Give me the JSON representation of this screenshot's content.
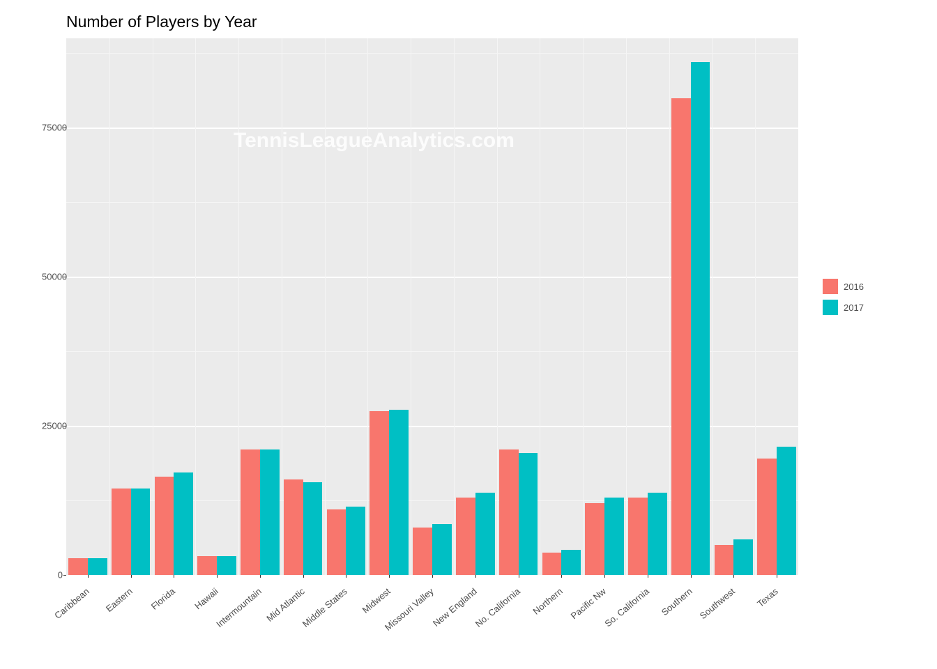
{
  "chart": {
    "type": "bar",
    "title": "Number of Players by Year",
    "title_fontsize": 23,
    "watermark": "TennisLeagueAnalytics.com",
    "watermark_color": "rgba(255,255,255,0.85)",
    "background_color": "#ffffff",
    "plot_bg_color": "#ebebeb",
    "grid_color": "#ffffff",
    "grid_minor_color": "#f5f5f5",
    "text_color": "#4d4d4d",
    "tick_fontsize": 13,
    "categories": [
      "Caribbean",
      "Eastern",
      "Florida",
      "Hawaii",
      "Intermountain",
      "Mid Atlantic",
      "Middle States",
      "Midwest",
      "Missouri Valley",
      "New England",
      "No. California",
      "Northern",
      "Pacific Nw",
      "So. California",
      "Southern",
      "Southwest",
      "Texas"
    ],
    "series": [
      {
        "name": "2016",
        "color": "#f8766d",
        "values": [
          2800,
          14500,
          16500,
          3200,
          21000,
          16000,
          11000,
          27500,
          8000,
          13000,
          21000,
          3800,
          12000,
          13000,
          80000,
          5000,
          19500
        ]
      },
      {
        "name": "2017",
        "color": "#00bfc4",
        "values": [
          2800,
          14500,
          17200,
          3200,
          21000,
          15500,
          11500,
          27700,
          8500,
          13800,
          20500,
          4200,
          13000,
          13800,
          86000,
          6000,
          21500
        ]
      }
    ],
    "ylim": [
      0,
      90000
    ],
    "yticks": [
      0,
      25000,
      50000,
      75000
    ],
    "bar_width_ratio": 0.9,
    "legend": {
      "items": [
        {
          "label": "2016",
          "color": "#f8766d"
        },
        {
          "label": "2017",
          "color": "#00bfc4"
        }
      ]
    }
  }
}
